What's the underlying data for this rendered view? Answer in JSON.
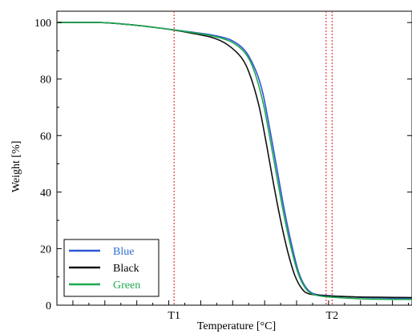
{
  "chart_data": {
    "type": "line",
    "xlabel": "Temperature [°C]",
    "ylabel": "Weight [%]",
    "ylim": [
      0,
      104
    ],
    "xlim": [
      0,
      100
    ],
    "grid": false,
    "legend_position": "bottom-left",
    "y_ticks": [
      "0",
      "20",
      "40",
      "60",
      "80",
      "100"
    ],
    "x_tick_labels": [
      {
        "x": 33.0,
        "text": "T1"
      },
      {
        "x": 77.5,
        "text": "T2"
      }
    ],
    "reference_lines": [
      {
        "x": 33.0,
        "color": "#e53935"
      },
      {
        "x": 75.8,
        "color": "#e53935"
      },
      {
        "x": 77.5,
        "color": "#e53935"
      }
    ],
    "series": [
      {
        "name": "Blue",
        "color": "#2f55d4",
        "legend_text_color": "#2f6fd4",
        "points": [
          [
            0,
            100
          ],
          [
            12,
            100
          ],
          [
            20,
            99.3
          ],
          [
            28,
            98.2
          ],
          [
            33,
            97.4
          ],
          [
            38,
            96.6
          ],
          [
            44,
            95.5
          ],
          [
            49,
            93.8
          ],
          [
            53,
            90
          ],
          [
            56,
            83
          ],
          [
            58,
            75
          ],
          [
            60,
            62
          ],
          [
            62,
            48
          ],
          [
            64,
            34
          ],
          [
            66,
            22
          ],
          [
            68,
            12
          ],
          [
            70,
            6.5
          ],
          [
            72,
            4.2
          ],
          [
            75,
            3.5
          ],
          [
            80,
            3.1
          ],
          [
            85,
            2.8
          ],
          [
            90,
            2.6
          ],
          [
            100,
            2.4
          ]
        ]
      },
      {
        "name": "Black",
        "color": "#111111",
        "legend_text_color": "#000000",
        "points": [
          [
            0,
            100
          ],
          [
            12,
            100
          ],
          [
            20,
            99.3
          ],
          [
            28,
            98.2
          ],
          [
            33,
            97.3
          ],
          [
            38,
            96.2
          ],
          [
            44,
            94.6
          ],
          [
            48,
            92.2
          ],
          [
            52,
            87.5
          ],
          [
            54.5,
            81
          ],
          [
            57,
            70
          ],
          [
            59,
            57
          ],
          [
            61,
            43
          ],
          [
            63,
            30
          ],
          [
            65,
            19
          ],
          [
            67,
            10.5
          ],
          [
            69,
            5.8
          ],
          [
            71,
            4
          ],
          [
            75,
            3.4
          ],
          [
            80,
            3.1
          ],
          [
            85,
            2.9
          ],
          [
            90,
            2.8
          ],
          [
            100,
            2.7
          ]
        ]
      },
      {
        "name": "Green",
        "color": "#1fa84f",
        "legend_text_color": "#1fa84f",
        "points": [
          [
            0,
            100
          ],
          [
            12,
            100
          ],
          [
            20,
            99.3
          ],
          [
            28,
            98.2
          ],
          [
            33,
            97.4
          ],
          [
            38,
            96.5
          ],
          [
            44,
            95.2
          ],
          [
            49,
            93.2
          ],
          [
            53,
            89.2
          ],
          [
            55.5,
            83
          ],
          [
            58,
            72
          ],
          [
            60,
            59
          ],
          [
            62,
            45
          ],
          [
            64,
            31.5
          ],
          [
            66,
            20
          ],
          [
            68,
            11
          ],
          [
            70,
            6
          ],
          [
            72,
            3.9
          ],
          [
            75,
            3.1
          ],
          [
            80,
            2.6
          ],
          [
            85,
            2.3
          ],
          [
            90,
            2.1
          ],
          [
            100,
            2.0
          ]
        ]
      }
    ]
  }
}
